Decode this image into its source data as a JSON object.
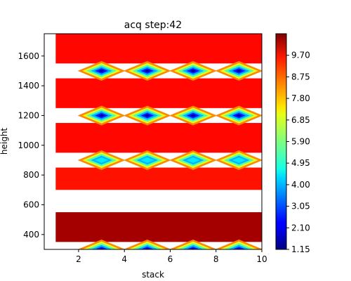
{
  "chart_data": {
    "type": "heatmap",
    "title": "acq step:42",
    "xlabel": "stack",
    "ylabel": "height",
    "xlim": [
      0.5,
      10
    ],
    "ylim": [
      300,
      1750
    ],
    "x_ticks": [
      2,
      4,
      6,
      8,
      10
    ],
    "y_ticks": [
      400,
      600,
      800,
      1000,
      1200,
      1400,
      1600
    ],
    "colorbar": {
      "min": 1.15,
      "max": 10.65,
      "ticks": [
        1.15,
        2.1,
        3.05,
        4.0,
        4.95,
        5.9,
        6.85,
        7.8,
        8.75,
        9.7
      ],
      "tick_labels": [
        "1.15",
        "2.10",
        "3.05",
        "4.00",
        "4.95",
        "5.90",
        "6.85",
        "7.80",
        "8.75",
        "9.70"
      ],
      "colormap": "jet"
    },
    "bands": [
      {
        "y_min": 1550,
        "y_max": 1750,
        "value": 9.4
      },
      {
        "y_min": 1250,
        "y_max": 1450,
        "value": 9.4
      },
      {
        "y_min": 950,
        "y_max": 1150,
        "value": 9.4
      },
      {
        "y_min": 700,
        "y_max": 850,
        "value": 9.3
      },
      {
        "y_min": 350,
        "y_max": 550,
        "value": 10.3
      }
    ],
    "dips": [
      {
        "x": 3,
        "y": 1500,
        "value": 1.3
      },
      {
        "x": 5,
        "y": 1500,
        "value": 1.3
      },
      {
        "x": 7,
        "y": 1500,
        "value": 1.3
      },
      {
        "x": 9,
        "y": 1500,
        "value": 1.3
      },
      {
        "x": 3,
        "y": 1200,
        "value": 1.3
      },
      {
        "x": 5,
        "y": 1200,
        "value": 1.3
      },
      {
        "x": 7,
        "y": 1200,
        "value": 1.3
      },
      {
        "x": 9,
        "y": 1200,
        "value": 1.3
      },
      {
        "x": 3,
        "y": 900,
        "value": 4.5
      },
      {
        "x": 5,
        "y": 900,
        "value": 4.5
      },
      {
        "x": 7,
        "y": 900,
        "value": 4.5
      },
      {
        "x": 9,
        "y": 900,
        "value": 4.5
      },
      {
        "x": 3,
        "y": 300,
        "value": 1.3
      },
      {
        "x": 5,
        "y": 300,
        "value": 1.3
      },
      {
        "x": 7,
        "y": 300,
        "value": 1.3
      },
      {
        "x": 9,
        "y": 300,
        "value": 1.3
      }
    ]
  }
}
